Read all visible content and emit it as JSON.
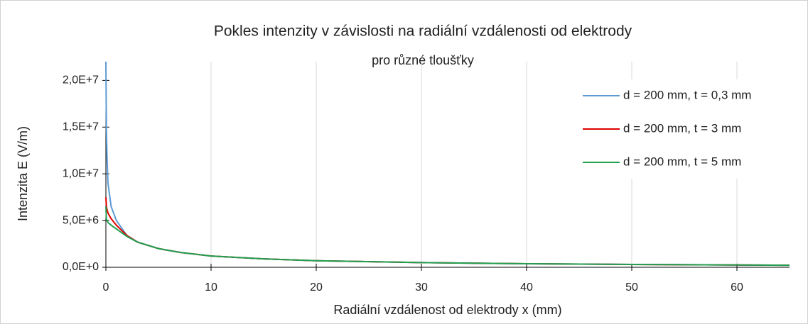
{
  "chart_data": {
    "type": "line",
    "title": "Pokles intenzity v závislosti na radiální vzdálenosti od elektrody",
    "subtitle": "pro různé tloušťky",
    "x_label": "Radiální vzdálenost od elektrody x (mm)",
    "y_label": "Intenzita E (V/m)",
    "x": [
      0,
      0.05,
      0.1,
      0.2,
      0.5,
      1,
      2,
      3,
      5,
      7,
      10,
      15,
      20,
      30,
      40,
      50,
      60,
      65
    ],
    "series": [
      {
        "name": "d = 200 mm, t = 0,3 mm",
        "color": "#5b9bd5",
        "values": [
          22000000,
          15000000,
          12000000,
          9000000,
          6500000,
          5000000,
          3400000,
          2700000,
          2000000,
          1600000,
          1200000,
          900000,
          700000,
          500000,
          380000,
          300000,
          250000,
          220000
        ]
      },
      {
        "name": "d = 200 mm, t = 3 mm",
        "color": "#e00000",
        "values": [
          7500000,
          6500000,
          6200000,
          5800000,
          5200000,
          4500000,
          3400000,
          2700000,
          2000000,
          1600000,
          1200000,
          900000,
          700000,
          500000,
          380000,
          300000,
          250000,
          220000
        ]
      },
      {
        "name": "d = 200 mm, t = 5 mm",
        "color": "#22a050",
        "values": [
          6500000,
          5200000,
          5000000,
          4800000,
          4500000,
          4100000,
          3300000,
          2700000,
          2000000,
          1600000,
          1200000,
          900000,
          700000,
          500000,
          380000,
          300000,
          250000,
          220000
        ]
      }
    ],
    "xlim": [
      0,
      65
    ],
    "xticks": [
      0,
      10,
      20,
      30,
      40,
      50,
      60
    ],
    "ylim": [
      0,
      22000000
    ],
    "yticks": [
      {
        "value": 0,
        "label": "0,0E+0"
      },
      {
        "value": 5000000,
        "label": "5,0E+6"
      },
      {
        "value": 10000000,
        "label": "1,0E+7"
      },
      {
        "value": 15000000,
        "label": "1,5E+7"
      },
      {
        "value": 20000000,
        "label": "2,0E+7"
      }
    ],
    "grid": "x",
    "legend": "top-right"
  }
}
